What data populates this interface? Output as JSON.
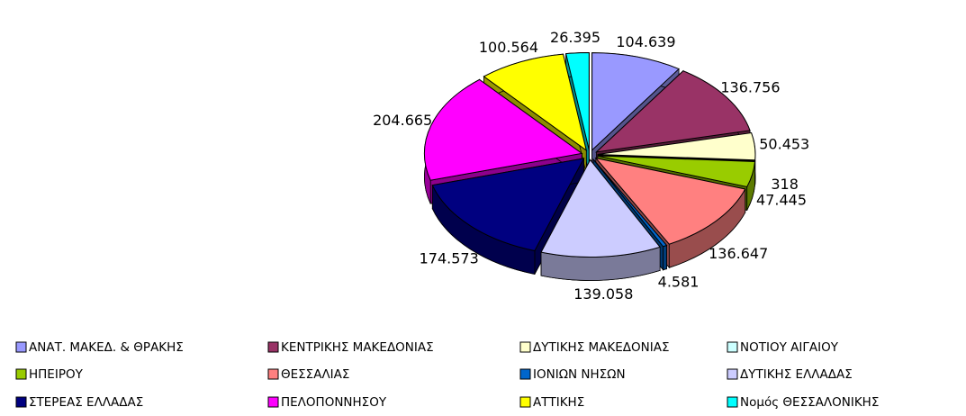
{
  "chart_data": {
    "type": "pie",
    "categories": [
      "ΑΝΑΤ. ΜΑΚΕΔ. & ΘΡΑΚΗΣ",
      "ΚΕΝΤΡΙΚΗΣ ΜΑΚΕΔΟΝΙΑΣ",
      "ΔΥΤΙΚΗΣ ΜΑΚΕΔΟΝΙΑΣ",
      "ΝΟΤΙΟΥ ΑΙΓΑΙΟΥ",
      "ΗΠΕΙΡΟΥ",
      "ΘΕΣΣΑΛΙΑΣ",
      "ΙΟΝΙΩΝ ΝΗΣΩΝ",
      "ΔΥΤΙΚΗΣ ΕΛΛΑΔΑΣ",
      "ΣΤΕΡΕΑΣ ΕΛΛΑΔΑΣ",
      "ΠΕΛΟΠΟΝΝΗΣΟΥ",
      "ΑΤΤΙΚΗΣ",
      "Νομός ΘΕΣΣΑΛΟΝΙΚΗΣ"
    ],
    "values": [
      104639,
      136756,
      50453,
      318,
      47445,
      136647,
      4581,
      139058,
      174573,
      204665,
      100564,
      26395
    ],
    "value_labels": [
      "104.639",
      "136.756",
      "50.453",
      "318",
      "47.445",
      "136.647",
      "4.581",
      "139.058",
      "174.573",
      "204.665",
      "100.564",
      "26.395"
    ],
    "colors": [
      "#9999ff",
      "#993366",
      "#ffffcc",
      "#ccffff",
      "#99cc00",
      "#ff8080",
      "#0066cc",
      "#ccccff",
      "#000080",
      "#ff00ff",
      "#ffff00",
      "#00ffff"
    ],
    "legend": "bottom"
  }
}
